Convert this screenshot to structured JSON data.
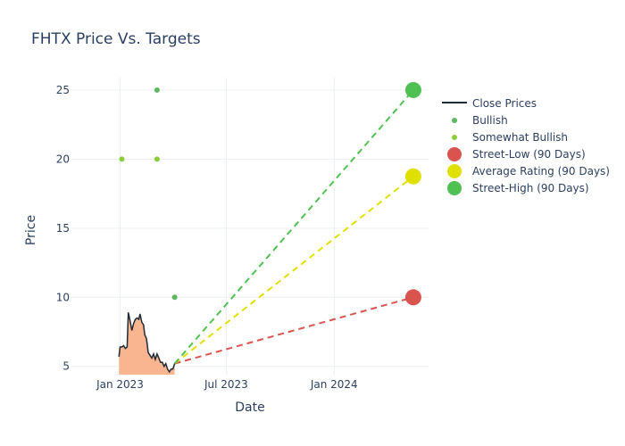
{
  "title": "FHTX Price Vs. Targets",
  "chart_data": {
    "type": "line",
    "title": "FHTX Price Vs. Targets",
    "xlabel": "Date",
    "ylabel": "Price",
    "xlim": [
      "2022-10-10",
      "2024-06-10"
    ],
    "ylim": [
      4.4,
      25.9
    ],
    "grid": true,
    "legend_position": "right",
    "x_ticks": [
      {
        "value": "2023-01-01",
        "label": "Jan 2023"
      },
      {
        "value": "2023-07-01",
        "label": "Jul 2023"
      },
      {
        "value": "2024-01-01",
        "label": "Jan 2024"
      }
    ],
    "y_ticks": [
      5,
      10,
      15,
      20,
      25
    ],
    "series": [
      {
        "name": "Close Prices",
        "kind": "line",
        "color": "#1f2a36",
        "fill_color": "#f9b590",
        "points": [
          [
            "2022-12-30",
            5.7
          ],
          [
            "2023-01-01",
            6.4
          ],
          [
            "2023-01-04",
            6.4
          ],
          [
            "2023-01-07",
            6.5
          ],
          [
            "2023-01-10",
            6.3
          ],
          [
            "2023-01-13",
            6.4
          ],
          [
            "2023-01-15",
            8.9
          ],
          [
            "2023-01-18",
            8.3
          ],
          [
            "2023-01-21",
            7.6
          ],
          [
            "2023-01-24",
            8.1
          ],
          [
            "2023-01-27",
            8.4
          ],
          [
            "2023-01-30",
            8.5
          ],
          [
            "2023-02-02",
            8.4
          ],
          [
            "2023-02-04",
            8.8
          ],
          [
            "2023-02-07",
            8.2
          ],
          [
            "2023-02-10",
            8.0
          ],
          [
            "2023-02-12",
            7.3
          ],
          [
            "2023-02-15",
            7.0
          ],
          [
            "2023-02-18",
            6.0
          ],
          [
            "2023-02-21",
            5.8
          ],
          [
            "2023-02-24",
            5.6
          ],
          [
            "2023-02-27",
            5.9
          ],
          [
            "2023-03-02",
            5.5
          ],
          [
            "2023-03-05",
            5.9
          ],
          [
            "2023-03-08",
            5.6
          ],
          [
            "2023-03-11",
            5.3
          ],
          [
            "2023-03-14",
            5.3
          ],
          [
            "2023-03-17",
            5.0
          ],
          [
            "2023-03-20",
            5.2
          ],
          [
            "2023-03-23",
            4.8
          ],
          [
            "2023-03-26",
            4.6
          ],
          [
            "2023-03-29",
            4.8
          ],
          [
            "2023-04-01",
            4.8
          ],
          [
            "2023-04-04",
            5.2
          ]
        ]
      },
      {
        "name": "Bullish",
        "kind": "markers",
        "color": "#5cb85c",
        "points": [
          [
            "2023-03-05",
            25
          ],
          [
            "2023-04-04",
            10
          ]
        ]
      },
      {
        "name": "Somewhat Bullish",
        "kind": "markers",
        "color": "#8ccc3a",
        "points": [
          [
            "2023-01-04",
            20
          ],
          [
            "2023-03-05",
            20
          ]
        ]
      },
      {
        "name": "Street-Low (90 Days)",
        "kind": "target",
        "color": "#d9534f",
        "from": [
          "2023-04-04",
          5.2
        ],
        "to": [
          "2024-05-15",
          10
        ]
      },
      {
        "name": "Average Rating (90 Days)",
        "kind": "target",
        "color": "#e0e000",
        "from": [
          "2023-04-04",
          5.2
        ],
        "to": [
          "2024-05-15",
          18.75
        ]
      },
      {
        "name": "Street-High (90 Days)",
        "kind": "target",
        "color": "#4fc152",
        "from": [
          "2023-04-04",
          5.2
        ],
        "to": [
          "2024-05-15",
          25
        ]
      }
    ]
  }
}
